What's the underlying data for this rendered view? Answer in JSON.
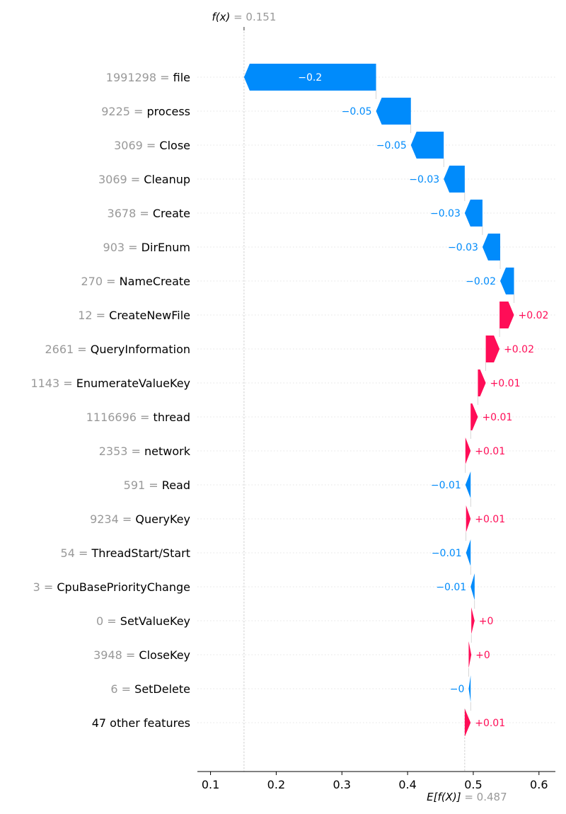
{
  "chart_data": {
    "type": "waterfall",
    "fx_label": "f(x)",
    "fx_value": "0.151",
    "ex_label": "E[f(X)]",
    "ex_value": "0.487",
    "xlim": [
      0.08,
      0.625
    ],
    "x_ticks": [
      0.1,
      0.2,
      0.3,
      0.4,
      0.5,
      0.6
    ],
    "x_tick_labels": [
      "0.1",
      "0.2",
      "0.3",
      "0.4",
      "0.5",
      "0.6"
    ],
    "base_value": 0.487,
    "output_value": 0.151,
    "colors": {
      "positive": "#ff0d57",
      "negative": "#008bfb",
      "text_gray": "#999999"
    },
    "features": [
      {
        "value": "1991298",
        "name": "file",
        "start": 0.352,
        "end": 0.151,
        "label": "−0.2"
      },
      {
        "value": "9225",
        "name": "process",
        "start": 0.405,
        "end": 0.352,
        "label": "−0.05"
      },
      {
        "value": "3069",
        "name": "Close",
        "start": 0.455,
        "end": 0.405,
        "label": "−0.05"
      },
      {
        "value": "3069",
        "name": "Cleanup",
        "start": 0.487,
        "end": 0.455,
        "label": "−0.03"
      },
      {
        "value": "3678",
        "name": "Create",
        "start": 0.514,
        "end": 0.487,
        "label": "−0.03"
      },
      {
        "value": "903",
        "name": "DirEnum",
        "start": 0.541,
        "end": 0.514,
        "label": "−0.03"
      },
      {
        "value": "270",
        "name": "NameCreate",
        "start": 0.562,
        "end": 0.541,
        "label": "−0.02"
      },
      {
        "value": "12",
        "name": "CreateNewFile",
        "start": 0.54,
        "end": 0.562,
        "label": "+0.02"
      },
      {
        "value": "2661",
        "name": "QueryInformation",
        "start": 0.519,
        "end": 0.54,
        "label": "+0.02"
      },
      {
        "value": "1143",
        "name": "EnumerateValueKey",
        "start": 0.507,
        "end": 0.519,
        "label": "+0.01"
      },
      {
        "value": "1116696",
        "name": "thread",
        "start": 0.496,
        "end": 0.507,
        "label": "+0.01"
      },
      {
        "value": "2353",
        "name": "network",
        "start": 0.488,
        "end": 0.496,
        "label": "+0.01"
      },
      {
        "value": "591",
        "name": "Read",
        "start": 0.496,
        "end": 0.488,
        "label": "−0.01"
      },
      {
        "value": "9234",
        "name": "QueryKey",
        "start": 0.489,
        "end": 0.496,
        "label": "+0.01"
      },
      {
        "value": "54",
        "name": "ThreadStart/Start",
        "start": 0.496,
        "end": 0.489,
        "label": "−0.01"
      },
      {
        "value": "3",
        "name": "CpuBasePriorityChange",
        "start": 0.502,
        "end": 0.496,
        "label": "−0.01"
      },
      {
        "value": "0",
        "name": "SetValueKey",
        "start": 0.497,
        "end": 0.502,
        "label": "+0"
      },
      {
        "value": "3948",
        "name": "CloseKey",
        "start": 0.493,
        "end": 0.497,
        "label": "+0"
      },
      {
        "value": "6",
        "name": "SetDelete",
        "start": 0.496,
        "end": 0.493,
        "label": "−0"
      },
      {
        "value": "",
        "name": "47 other features",
        "start": 0.487,
        "end": 0.496,
        "label": "+0.01"
      }
    ]
  }
}
